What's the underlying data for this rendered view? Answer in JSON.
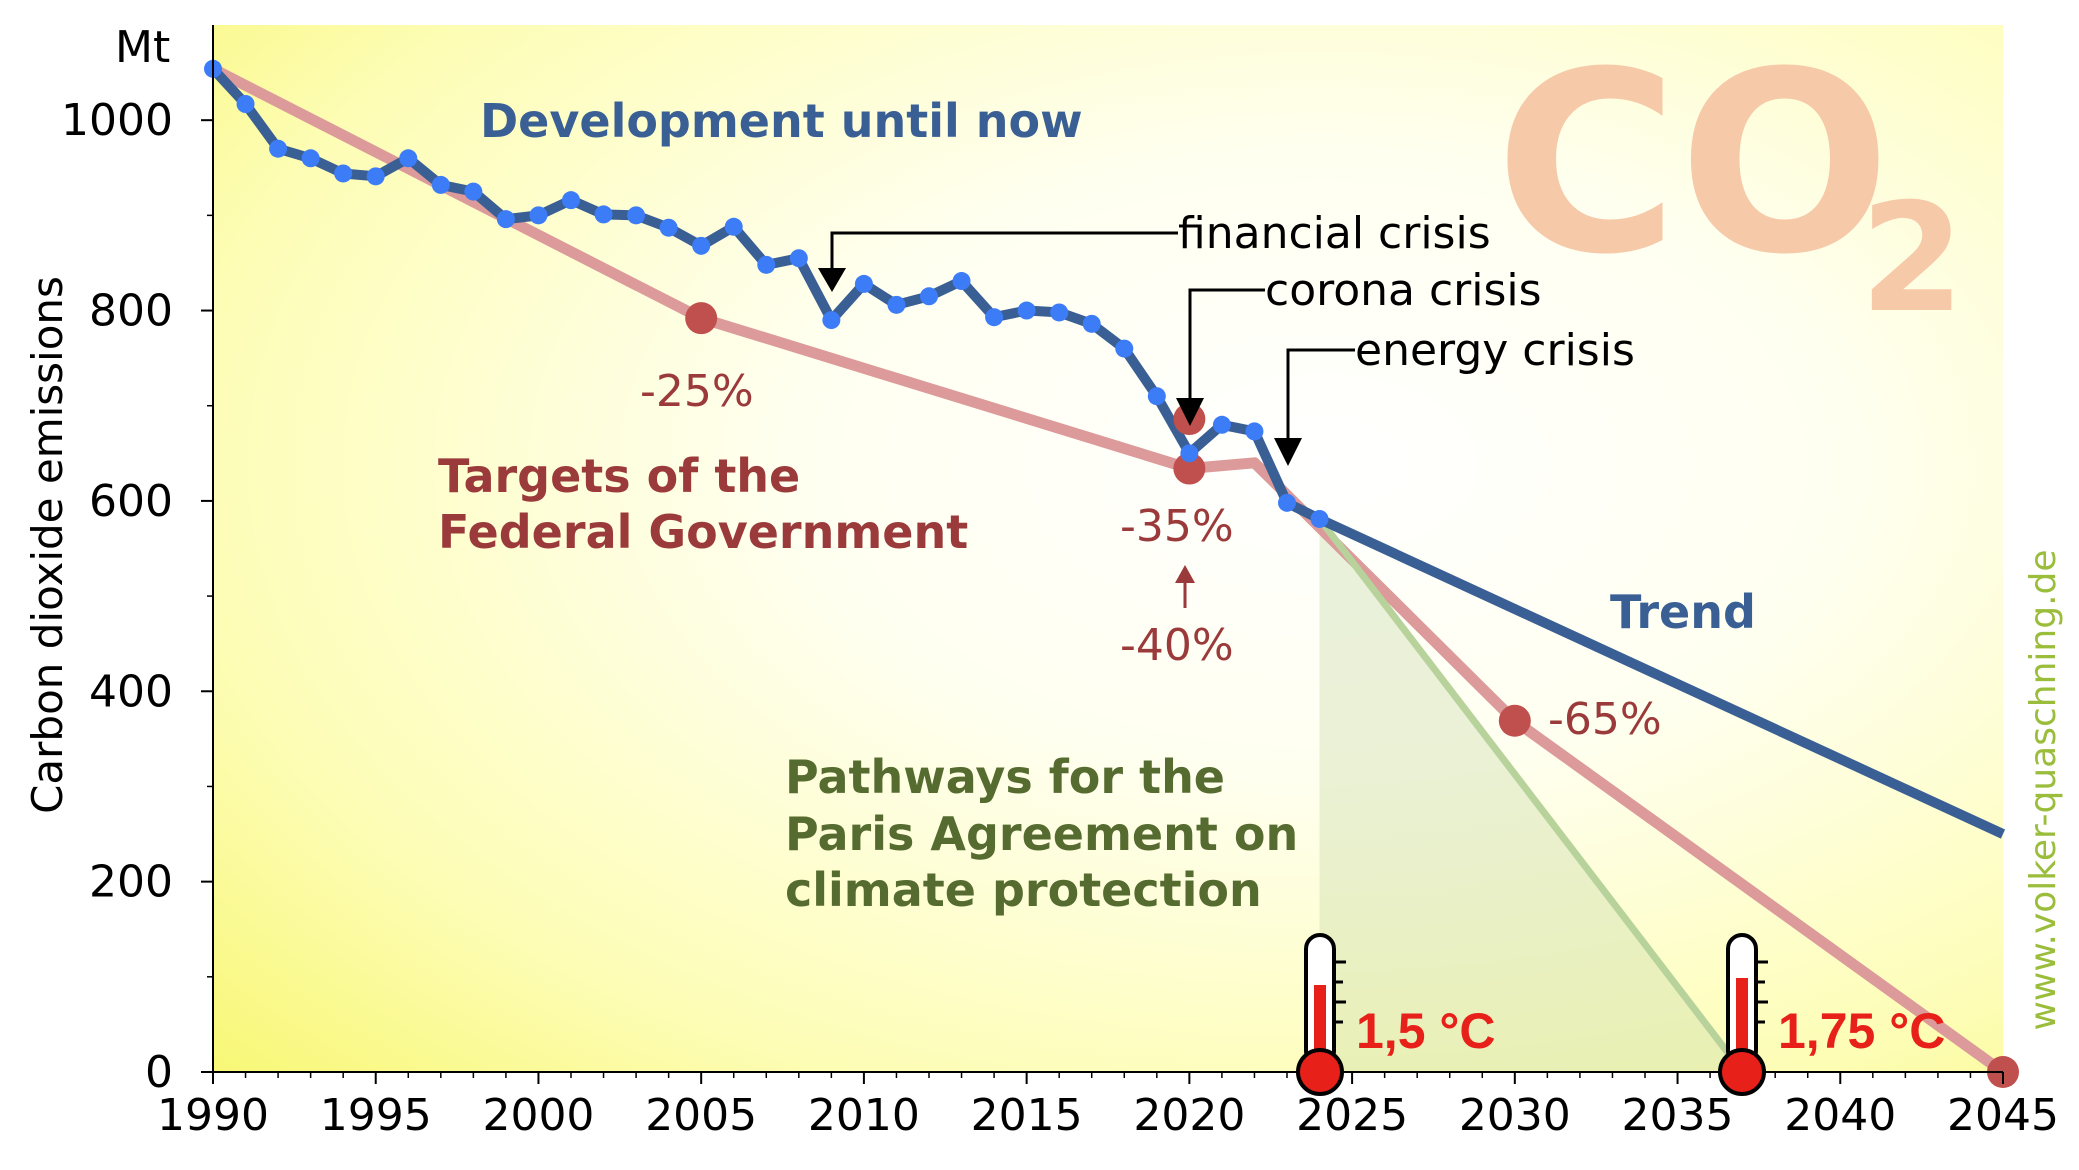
{
  "chart_data": {
    "type": "line",
    "ylabel": "Carbon dioxide emissions",
    "yunit": "Mt",
    "xlim": [
      1990,
      2045
    ],
    "ylim": [
      0,
      1100
    ],
    "x_ticks": [
      1990,
      1995,
      2000,
      2005,
      2010,
      2015,
      2020,
      2025,
      2030,
      2035,
      2040,
      2045
    ],
    "y_ticks": [
      0,
      200,
      400,
      600,
      800,
      1000
    ],
    "series": [
      {
        "name": "Development until now",
        "color": "#3a5f94",
        "marker_color": "#3d7cf7",
        "points": [
          [
            1990,
            1054
          ],
          [
            1991,
            1017
          ],
          [
            1992,
            970
          ],
          [
            1993,
            960
          ],
          [
            1994,
            944
          ],
          [
            1995,
            941
          ],
          [
            1996,
            960
          ],
          [
            1997,
            932
          ],
          [
            1998,
            925
          ],
          [
            1999,
            896
          ],
          [
            2000,
            900
          ],
          [
            2001,
            916
          ],
          [
            2002,
            901
          ],
          [
            2003,
            900
          ],
          [
            2004,
            887
          ],
          [
            2005,
            868
          ],
          [
            2006,
            888
          ],
          [
            2007,
            848
          ],
          [
            2008,
            855
          ],
          [
            2009,
            790
          ],
          [
            2010,
            828
          ],
          [
            2011,
            806
          ],
          [
            2012,
            815
          ],
          [
            2013,
            831
          ],
          [
            2014,
            793
          ],
          [
            2015,
            800
          ],
          [
            2016,
            798
          ],
          [
            2017,
            786
          ],
          [
            2018,
            760
          ],
          [
            2019,
            710
          ],
          [
            2020,
            650
          ],
          [
            2021,
            680
          ],
          [
            2022,
            673
          ],
          [
            2023,
            598
          ],
          [
            2024,
            581
          ]
        ]
      },
      {
        "name": "Trend",
        "color": "#3a5f94",
        "points": [
          [
            2024,
            581
          ],
          [
            2045,
            250
          ]
        ]
      },
      {
        "name": "Targets of the Federal Government",
        "color": "#dc9a9a",
        "marker_color": "#c0504d",
        "points": [
          [
            1990,
            1054
          ],
          [
            2005,
            792
          ],
          [
            2020,
            634
          ],
          [
            2022,
            640
          ],
          [
            2030,
            369
          ],
          [
            2045,
            0
          ]
        ],
        "markers": [
          [
            2005,
            792
          ],
          [
            2020,
            634
          ],
          [
            2030,
            369
          ],
          [
            2045,
            0
          ]
        ],
        "extra_markers": [
          [
            2020,
            686
          ]
        ]
      },
      {
        "name": "Pathways for the Paris Agreement on climate protection",
        "color": "#b7d29a",
        "points": [
          [
            2024,
            581
          ],
          [
            2037,
            0
          ]
        ]
      }
    ],
    "annotations": {
      "development": "Development until now",
      "targets_line1": "Targets of the",
      "targets_line2": "Federal Government",
      "trend": "Trend",
      "paris_line1": "Pathways for the",
      "paris_line2": "Paris Agreement on",
      "paris_line3": "climate protection",
      "financial": "financial crisis",
      "corona": "corona crisis",
      "energy": "energy crisis",
      "pct_25": "-25%",
      "pct_35": "-35%",
      "pct_40": "-40%",
      "pct_65": "-65%",
      "temp_15": "1,5 °C",
      "temp_175": "1,75 °C",
      "co2_main": "CO",
      "co2_sub": "2",
      "credit": "www.volker-quaschning.de"
    }
  }
}
